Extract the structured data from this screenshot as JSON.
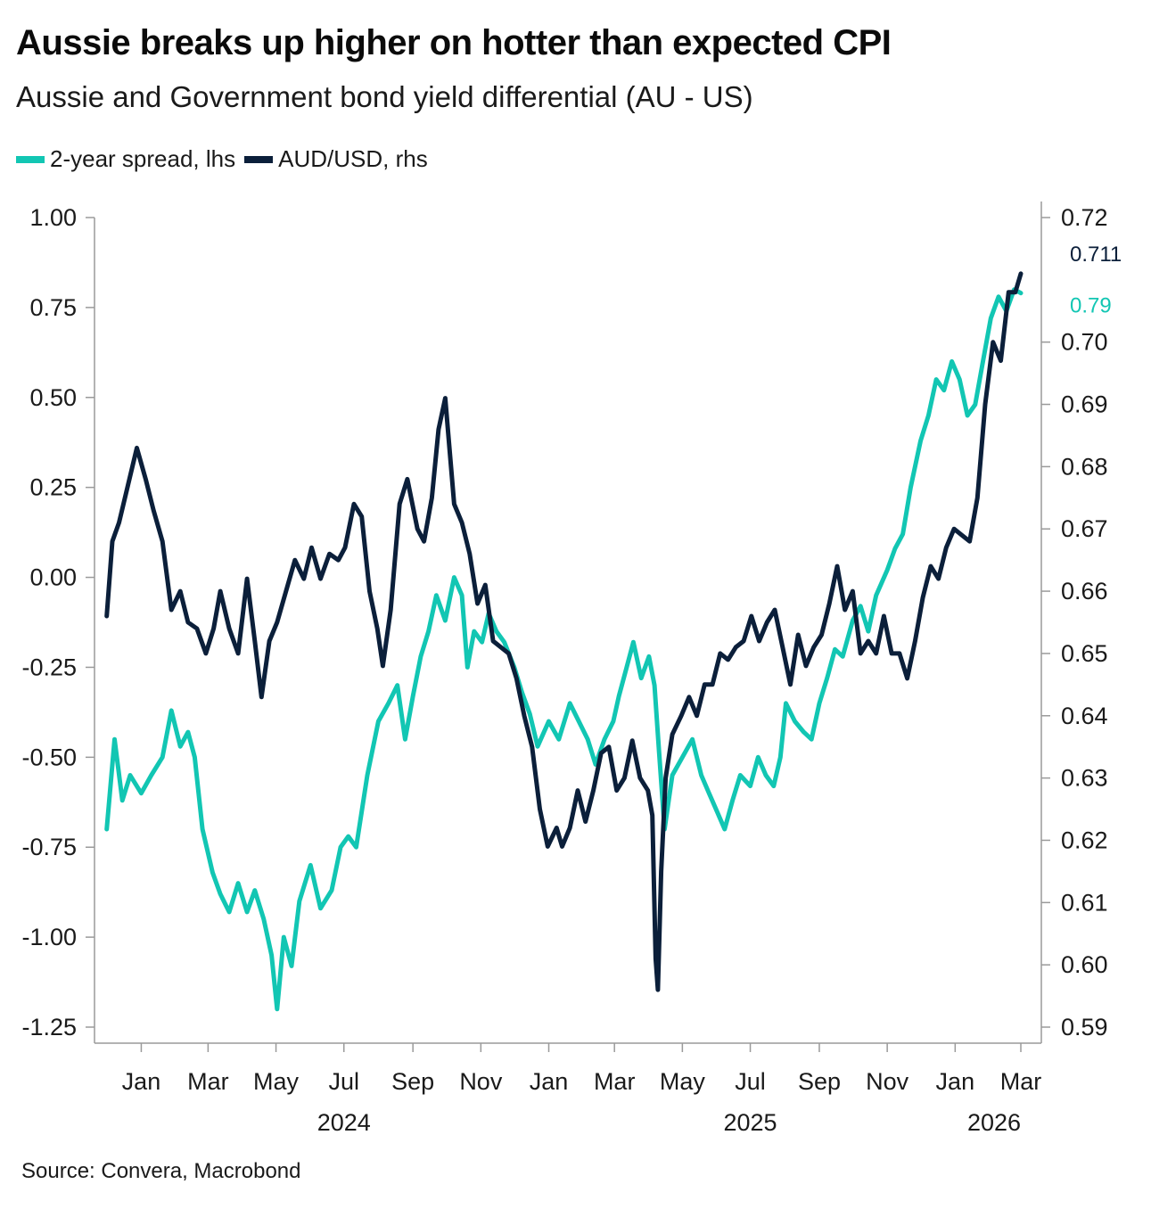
{
  "title": "Aussie breaks up higher on hotter than expected CPI",
  "subtitle": "Aussie and Government bond yield differential (AU - US)",
  "source": "Source: Convera, Macrobond",
  "colors": {
    "spread": "#12c6b3",
    "audusd": "#0b1f3a",
    "axis": "#9a9a9a"
  },
  "legend": [
    {
      "label": "2-year spread, lhs",
      "color": "#12c6b3"
    },
    {
      "label": "AUD/USD, rhs",
      "color": "#0b1f3a"
    }
  ],
  "chart_data": {
    "type": "line",
    "x_ticks": [
      "Jan",
      "Mar",
      "May",
      "Jul",
      "Sep",
      "Nov",
      "Jan",
      "Mar",
      "May",
      "Jul",
      "Sep",
      "Nov",
      "Jan",
      "Mar"
    ],
    "x_tick_dates": [
      "2024-01-01",
      "2024-03-01",
      "2024-05-01",
      "2024-07-01",
      "2024-09-01",
      "2024-11-01",
      "2025-01-01",
      "2025-03-01",
      "2025-05-01",
      "2025-07-01",
      "2025-09-01",
      "2025-11-01",
      "2026-01-01",
      "2026-03-01"
    ],
    "year_labels": [
      {
        "label": "2024",
        "date": "2024-07-01"
      },
      {
        "label": "2025",
        "date": "2025-07-01"
      },
      {
        "label": "2026",
        "date": "2026-02-05"
      }
    ],
    "x_range": [
      "2023-11-20",
      "2026-03-05"
    ],
    "y_left": {
      "ylim": [
        -1.25,
        1.0
      ],
      "ticks": [
        "1.00",
        "0.75",
        "0.50",
        "0.25",
        "0.00",
        "-0.25",
        "-0.50",
        "-0.75",
        "-1.00",
        "-1.25"
      ]
    },
    "y_right": {
      "ylim": [
        0.59,
        0.72
      ],
      "ticks": [
        "0.72",
        "0.70",
        "0.69",
        "0.68",
        "0.67",
        "0.66",
        "0.65",
        "0.64",
        "0.63",
        "0.62",
        "0.61",
        "0.60",
        "0.59"
      ]
    },
    "end_labels": {
      "audusd": "0.711",
      "spread": "0.79"
    },
    "series": [
      {
        "name": "2-year spread, lhs",
        "axis": "left",
        "points": [
          [
            "2023-12-01",
            -0.7
          ],
          [
            "2023-12-08",
            -0.45
          ],
          [
            "2023-12-15",
            -0.62
          ],
          [
            "2023-12-22",
            -0.55
          ],
          [
            "2024-01-01",
            -0.6
          ],
          [
            "2024-01-10",
            -0.55
          ],
          [
            "2024-01-20",
            -0.5
          ],
          [
            "2024-01-28",
            -0.37
          ],
          [
            "2024-02-05",
            -0.47
          ],
          [
            "2024-02-12",
            -0.43
          ],
          [
            "2024-02-18",
            -0.5
          ],
          [
            "2024-02-25",
            -0.7
          ],
          [
            "2024-03-05",
            -0.82
          ],
          [
            "2024-03-12",
            -0.88
          ],
          [
            "2024-03-20",
            -0.93
          ],
          [
            "2024-03-28",
            -0.85
          ],
          [
            "2024-04-05",
            -0.93
          ],
          [
            "2024-04-12",
            -0.87
          ],
          [
            "2024-04-20",
            -0.95
          ],
          [
            "2024-04-27",
            -1.05
          ],
          [
            "2024-05-02",
            -1.2
          ],
          [
            "2024-05-08",
            -1.0
          ],
          [
            "2024-05-15",
            -1.08
          ],
          [
            "2024-05-22",
            -0.9
          ],
          [
            "2024-06-01",
            -0.8
          ],
          [
            "2024-06-10",
            -0.92
          ],
          [
            "2024-06-20",
            -0.87
          ],
          [
            "2024-06-28",
            -0.75
          ],
          [
            "2024-07-05",
            -0.72
          ],
          [
            "2024-07-12",
            -0.75
          ],
          [
            "2024-07-22",
            -0.55
          ],
          [
            "2024-08-01",
            -0.4
          ],
          [
            "2024-08-10",
            -0.35
          ],
          [
            "2024-08-18",
            -0.3
          ],
          [
            "2024-08-25",
            -0.45
          ],
          [
            "2024-09-01",
            -0.33
          ],
          [
            "2024-09-08",
            -0.22
          ],
          [
            "2024-09-15",
            -0.15
          ],
          [
            "2024-09-22",
            -0.05
          ],
          [
            "2024-09-30",
            -0.12
          ],
          [
            "2024-10-08",
            0.0
          ],
          [
            "2024-10-15",
            -0.05
          ],
          [
            "2024-10-20",
            -0.25
          ],
          [
            "2024-10-26",
            -0.15
          ],
          [
            "2024-11-02",
            -0.18
          ],
          [
            "2024-11-08",
            -0.1
          ],
          [
            "2024-11-15",
            -0.15
          ],
          [
            "2024-11-22",
            -0.18
          ],
          [
            "2024-12-01",
            -0.25
          ],
          [
            "2024-12-08",
            -0.32
          ],
          [
            "2024-12-15",
            -0.38
          ],
          [
            "2024-12-22",
            -0.47
          ],
          [
            "2025-01-01",
            -0.4
          ],
          [
            "2025-01-10",
            -0.45
          ],
          [
            "2025-01-20",
            -0.35
          ],
          [
            "2025-01-28",
            -0.4
          ],
          [
            "2025-02-05",
            -0.45
          ],
          [
            "2025-02-12",
            -0.52
          ],
          [
            "2025-02-20",
            -0.45
          ],
          [
            "2025-02-28",
            -0.4
          ],
          [
            "2025-03-05",
            -0.33
          ],
          [
            "2025-03-12",
            -0.25
          ],
          [
            "2025-03-18",
            -0.18
          ],
          [
            "2025-03-25",
            -0.28
          ],
          [
            "2025-04-01",
            -0.22
          ],
          [
            "2025-04-06",
            -0.3
          ],
          [
            "2025-04-10",
            -0.48
          ],
          [
            "2025-04-15",
            -0.7
          ],
          [
            "2025-04-22",
            -0.55
          ],
          [
            "2025-05-01",
            -0.5
          ],
          [
            "2025-05-10",
            -0.45
          ],
          [
            "2025-05-18",
            -0.55
          ],
          [
            "2025-05-25",
            -0.6
          ],
          [
            "2025-06-01",
            -0.65
          ],
          [
            "2025-06-08",
            -0.7
          ],
          [
            "2025-06-15",
            -0.62
          ],
          [
            "2025-06-22",
            -0.55
          ],
          [
            "2025-07-01",
            -0.58
          ],
          [
            "2025-07-08",
            -0.5
          ],
          [
            "2025-07-15",
            -0.55
          ],
          [
            "2025-07-22",
            -0.58
          ],
          [
            "2025-07-28",
            -0.5
          ],
          [
            "2025-08-02",
            -0.35
          ],
          [
            "2025-08-10",
            -0.4
          ],
          [
            "2025-08-18",
            -0.43
          ],
          [
            "2025-08-25",
            -0.45
          ],
          [
            "2025-09-01",
            -0.35
          ],
          [
            "2025-09-08",
            -0.28
          ],
          [
            "2025-09-15",
            -0.2
          ],
          [
            "2025-09-22",
            -0.22
          ],
          [
            "2025-10-01",
            -0.12
          ],
          [
            "2025-10-08",
            -0.08
          ],
          [
            "2025-10-15",
            -0.15
          ],
          [
            "2025-10-22",
            -0.05
          ],
          [
            "2025-11-01",
            0.02
          ],
          [
            "2025-11-08",
            0.08
          ],
          [
            "2025-11-15",
            0.12
          ],
          [
            "2025-11-22",
            0.25
          ],
          [
            "2025-12-01",
            0.38
          ],
          [
            "2025-12-08",
            0.45
          ],
          [
            "2025-12-15",
            0.55
          ],
          [
            "2025-12-22",
            0.52
          ],
          [
            "2025-12-29",
            0.6
          ],
          [
            "2026-01-05",
            0.55
          ],
          [
            "2026-01-12",
            0.45
          ],
          [
            "2026-01-19",
            0.48
          ],
          [
            "2026-01-26",
            0.6
          ],
          [
            "2026-02-02",
            0.72
          ],
          [
            "2026-02-09",
            0.78
          ],
          [
            "2026-02-16",
            0.74
          ],
          [
            "2026-02-23",
            0.8
          ],
          [
            "2026-03-01",
            0.79
          ]
        ]
      },
      {
        "name": "AUD/USD, rhs",
        "axis": "right",
        "points": [
          [
            "2023-12-01",
            0.656
          ],
          [
            "2023-12-06",
            0.668
          ],
          [
            "2023-12-12",
            0.671
          ],
          [
            "2023-12-20",
            0.677
          ],
          [
            "2023-12-28",
            0.683
          ],
          [
            "2024-01-05",
            0.678
          ],
          [
            "2024-01-12",
            0.673
          ],
          [
            "2024-01-20",
            0.668
          ],
          [
            "2024-01-28",
            0.657
          ],
          [
            "2024-02-05",
            0.66
          ],
          [
            "2024-02-12",
            0.655
          ],
          [
            "2024-02-20",
            0.654
          ],
          [
            "2024-02-28",
            0.65
          ],
          [
            "2024-03-06",
            0.654
          ],
          [
            "2024-03-12",
            0.66
          ],
          [
            "2024-03-20",
            0.654
          ],
          [
            "2024-03-28",
            0.65
          ],
          [
            "2024-04-05",
            0.662
          ],
          [
            "2024-04-12",
            0.652
          ],
          [
            "2024-04-18",
            0.643
          ],
          [
            "2024-04-25",
            0.652
          ],
          [
            "2024-05-02",
            0.655
          ],
          [
            "2024-05-10",
            0.66
          ],
          [
            "2024-05-18",
            0.665
          ],
          [
            "2024-05-26",
            0.662
          ],
          [
            "2024-06-02",
            0.667
          ],
          [
            "2024-06-10",
            0.662
          ],
          [
            "2024-06-18",
            0.666
          ],
          [
            "2024-06-26",
            0.665
          ],
          [
            "2024-07-02",
            0.667
          ],
          [
            "2024-07-10",
            0.674
          ],
          [
            "2024-07-17",
            0.672
          ],
          [
            "2024-07-24",
            0.66
          ],
          [
            "2024-07-31",
            0.654
          ],
          [
            "2024-08-05",
            0.648
          ],
          [
            "2024-08-12",
            0.657
          ],
          [
            "2024-08-20",
            0.674
          ],
          [
            "2024-08-27",
            0.678
          ],
          [
            "2024-09-05",
            0.67
          ],
          [
            "2024-09-11",
            0.668
          ],
          [
            "2024-09-18",
            0.675
          ],
          [
            "2024-09-24",
            0.686
          ],
          [
            "2024-09-30",
            0.691
          ],
          [
            "2024-10-08",
            0.674
          ],
          [
            "2024-10-15",
            0.671
          ],
          [
            "2024-10-22",
            0.666
          ],
          [
            "2024-10-29",
            0.658
          ],
          [
            "2024-11-05",
            0.661
          ],
          [
            "2024-11-12",
            0.652
          ],
          [
            "2024-11-19",
            0.651
          ],
          [
            "2024-11-26",
            0.65
          ],
          [
            "2024-12-03",
            0.646
          ],
          [
            "2024-12-10",
            0.64
          ],
          [
            "2024-12-17",
            0.635
          ],
          [
            "2024-12-24",
            0.625
          ],
          [
            "2024-12-31",
            0.619
          ],
          [
            "2025-01-08",
            0.622
          ],
          [
            "2025-01-13",
            0.619
          ],
          [
            "2025-01-20",
            0.622
          ],
          [
            "2025-01-27",
            0.628
          ],
          [
            "2025-02-03",
            0.623
          ],
          [
            "2025-02-10",
            0.628
          ],
          [
            "2025-02-17",
            0.634
          ],
          [
            "2025-02-24",
            0.635
          ],
          [
            "2025-03-03",
            0.628
          ],
          [
            "2025-03-10",
            0.63
          ],
          [
            "2025-03-17",
            0.636
          ],
          [
            "2025-03-24",
            0.63
          ],
          [
            "2025-03-31",
            0.628
          ],
          [
            "2025-04-04",
            0.624
          ],
          [
            "2025-04-07",
            0.601
          ],
          [
            "2025-04-09",
            0.596
          ],
          [
            "2025-04-12",
            0.615
          ],
          [
            "2025-04-16",
            0.63
          ],
          [
            "2025-04-22",
            0.637
          ],
          [
            "2025-04-30",
            0.64
          ],
          [
            "2025-05-07",
            0.643
          ],
          [
            "2025-05-14",
            0.64
          ],
          [
            "2025-05-21",
            0.645
          ],
          [
            "2025-05-28",
            0.645
          ],
          [
            "2025-06-04",
            0.65
          ],
          [
            "2025-06-11",
            0.649
          ],
          [
            "2025-06-18",
            0.651
          ],
          [
            "2025-06-25",
            0.652
          ],
          [
            "2025-07-02",
            0.656
          ],
          [
            "2025-07-09",
            0.652
          ],
          [
            "2025-07-16",
            0.655
          ],
          [
            "2025-07-23",
            0.657
          ],
          [
            "2025-07-30",
            0.651
          ],
          [
            "2025-08-06",
            0.645
          ],
          [
            "2025-08-13",
            0.653
          ],
          [
            "2025-08-20",
            0.648
          ],
          [
            "2025-08-27",
            0.651
          ],
          [
            "2025-09-03",
            0.653
          ],
          [
            "2025-09-10",
            0.658
          ],
          [
            "2025-09-17",
            0.664
          ],
          [
            "2025-09-24",
            0.657
          ],
          [
            "2025-10-01",
            0.66
          ],
          [
            "2025-10-08",
            0.65
          ],
          [
            "2025-10-15",
            0.652
          ],
          [
            "2025-10-22",
            0.65
          ],
          [
            "2025-10-29",
            0.656
          ],
          [
            "2025-11-05",
            0.65
          ],
          [
            "2025-11-12",
            0.65
          ],
          [
            "2025-11-19",
            0.646
          ],
          [
            "2025-11-26",
            0.652
          ],
          [
            "2025-12-03",
            0.659
          ],
          [
            "2025-12-10",
            0.664
          ],
          [
            "2025-12-17",
            0.662
          ],
          [
            "2025-12-24",
            0.667
          ],
          [
            "2025-12-31",
            0.67
          ],
          [
            "2026-01-07",
            0.669
          ],
          [
            "2026-01-14",
            0.668
          ],
          [
            "2026-01-21",
            0.675
          ],
          [
            "2026-01-28",
            0.69
          ],
          [
            "2026-02-04",
            0.7
          ],
          [
            "2026-02-11",
            0.697
          ],
          [
            "2026-02-18",
            0.708
          ],
          [
            "2026-02-24",
            0.708
          ],
          [
            "2026-03-01",
            0.711
          ]
        ]
      }
    ]
  }
}
